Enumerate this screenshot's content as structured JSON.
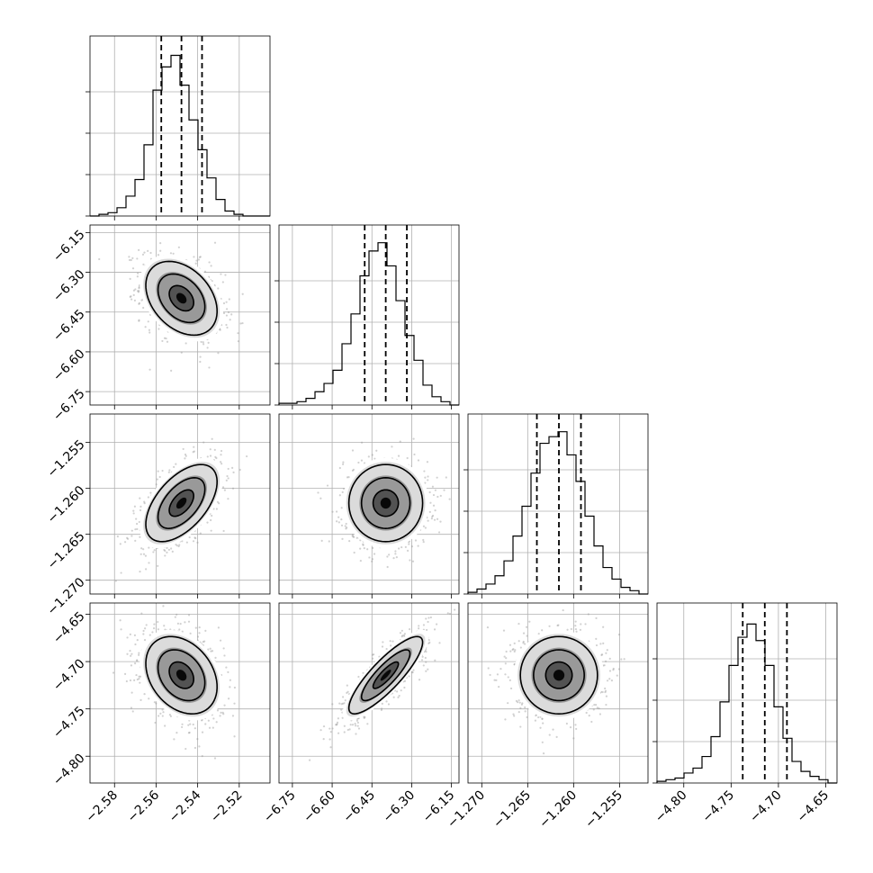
{
  "chart_data": {
    "type": "corner",
    "parameters": [
      {
        "ticks": [
          -2.58,
          -2.56,
          -2.54,
          -2.52
        ],
        "tick_labels": [
          "−2.58",
          "−2.56",
          "−2.54",
          "−2.52"
        ],
        "range": [
          -2.5918,
          -2.5052
        ],
        "median": -2.5478,
        "q16": -2.5575,
        "q84": -2.5379
      },
      {
        "ticks": [
          -6.75,
          -6.6,
          -6.45,
          -6.3,
          -6.15
        ],
        "tick_labels": [
          "−6.75",
          "−6.60",
          "−6.45",
          "−6.30",
          "−6.15"
        ],
        "range": [
          -6.8005,
          -6.1216
        ],
        "median": -6.3979,
        "q16": -6.4773,
        "q84": -6.3183
      },
      {
        "ticks": [
          -1.27,
          -1.265,
          -1.26,
          -1.255
        ],
        "tick_labels": [
          "−1.270",
          "−1.265",
          "−1.260",
          "−1.255"
        ],
        "range": [
          -1.2715,
          -1.2519
        ],
        "median": -1.2616,
        "q16": -1.264,
        "q84": -1.2592
      },
      {
        "ticks": [
          -4.8,
          -4.75,
          -4.7,
          -4.65
        ],
        "tick_labels": [
          "−4.80",
          "−4.75",
          "−4.70",
          "−4.65"
        ],
        "range": [
          -4.8283,
          -4.6381
        ],
        "median": -4.7144,
        "q16": -4.7377,
        "q84": -4.691
      }
    ],
    "histograms": [
      [
        0,
        0.01,
        0.02,
        0.05,
        0.12,
        0.22,
        0.43,
        0.76,
        0.9,
        0.97,
        0.79,
        0.58,
        0.4,
        0.23,
        0.1,
        0.03,
        0.01,
        0.0,
        0,
        0
      ],
      [
        0.01,
        0.01,
        0.02,
        0.04,
        0.08,
        0.13,
        0.21,
        0.37,
        0.55,
        0.78,
        0.93,
        0.98,
        0.84,
        0.63,
        0.42,
        0.27,
        0.12,
        0.05,
        0.02,
        0
      ],
      [
        0.01,
        0.03,
        0.06,
        0.11,
        0.2,
        0.35,
        0.53,
        0.73,
        0.91,
        0.95,
        0.98,
        0.84,
        0.68,
        0.47,
        0.29,
        0.16,
        0.09,
        0.04,
        0.02,
        0
      ],
      [
        0.01,
        0.02,
        0.03,
        0.06,
        0.09,
        0.16,
        0.28,
        0.49,
        0.71,
        0.88,
        0.96,
        0.86,
        0.71,
        0.46,
        0.27,
        0.13,
        0.07,
        0.04,
        0.02,
        0
      ]
    ],
    "covariance": [
      [
        1.0,
        -0.35,
        0.55,
        -0.3
      ],
      [
        -0.35,
        1.0,
        0.0,
        0.85
      ],
      [
        0.55,
        0.0,
        1.0,
        0.0
      ],
      [
        -0.3,
        0.85,
        0.0,
        1.0
      ]
    ],
    "sample_points": 900,
    "contour_levels": [
      0.5,
      1.0,
      1.5
    ],
    "grid": true,
    "colors": {
      "line": "#000000",
      "grid": "#b0b0b0",
      "points": "#9a9a9a",
      "density": "#000000"
    }
  }
}
